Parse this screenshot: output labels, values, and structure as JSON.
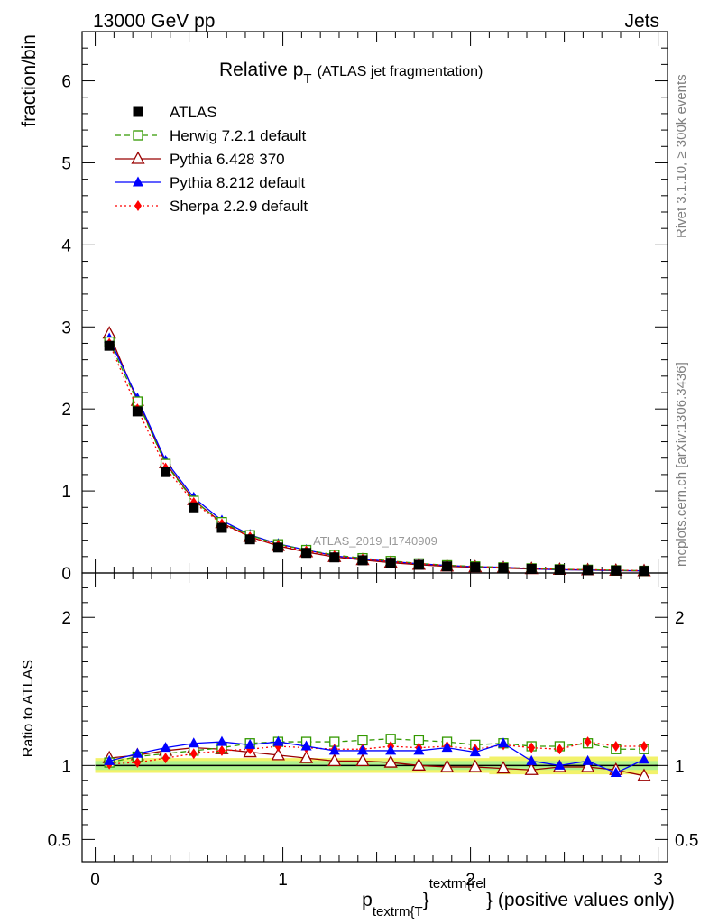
{
  "header": {
    "energy": "13000 GeV pp",
    "process": "Jets",
    "title_main": "Relative p",
    "title_sub": "T",
    "title_rest": "(ATLAS jet fragmentation)",
    "analysis_id": "ATLAS_2019_I1740909",
    "rivet_label": "Rivet 3.1.10, ≥ 300k events",
    "mcplots_label": "mcplots.cern.ch [arXiv:1306.3436]"
  },
  "axes": {
    "ylabel_top": "fraction/bin",
    "ylabel_bottom": "Ratio to ATLAS",
    "xlabel_main": "p",
    "xlabel_sub": "textrm{T",
    "xlabel_sup": "textrm{rel",
    "xlabel_rest": "} (positive values only)",
    "xlabel_close": "}"
  },
  "colors": {
    "atlas": "#000000",
    "herwig": "#339900",
    "pythia6": "#990000",
    "pythia8": "#0000ff",
    "sherpa": "#ff0000",
    "band_outer": "#f2f26a",
    "band_inner": "#aef28d"
  },
  "chart_data": [
    {
      "type": "line",
      "title": "Relative pT (ATLAS jet fragmentation)",
      "xlabel": "p_T^rel (positive values only)",
      "ylabel": "fraction/bin",
      "xlim": [
        -0.07,
        3.05
      ],
      "ylim": [
        0,
        6.6
      ],
      "xticks": [
        0,
        1,
        2,
        3
      ],
      "yticks": [
        0,
        1,
        2,
        3,
        4,
        5,
        6
      ],
      "legend_position": "top-left",
      "x": [
        0.075,
        0.225,
        0.375,
        0.525,
        0.675,
        0.825,
        0.975,
        1.125,
        1.275,
        1.425,
        1.575,
        1.725,
        1.875,
        2.025,
        2.175,
        2.325,
        2.475,
        2.625,
        2.775,
        2.925
      ],
      "series": [
        {
          "name": "ATLAS",
          "key": "atlas",
          "marker": "filled-square",
          "line": "none",
          "values": [
            2.77,
            1.97,
            1.23,
            0.8,
            0.55,
            0.41,
            0.31,
            0.245,
            0.19,
            0.155,
            0.125,
            0.1,
            0.08,
            0.07,
            0.06,
            0.05,
            0.04,
            0.035,
            0.03,
            0.025
          ]
        },
        {
          "name": "Herwig 7.2.1 default",
          "key": "herwig",
          "marker": "open-square",
          "line": "dashed",
          "values": [
            2.82,
            2.09,
            1.33,
            0.88,
            0.62,
            0.46,
            0.35,
            0.28,
            0.22,
            0.18,
            0.146,
            0.117,
            0.094,
            0.08,
            0.068,
            0.056,
            0.045,
            0.04,
            0.033,
            0.027
          ]
        },
        {
          "name": "Pythia 6.428 370",
          "key": "pythia6",
          "marker": "open-triangle",
          "line": "solid",
          "values": [
            2.92,
            2.1,
            1.34,
            0.89,
            0.61,
            0.44,
            0.33,
            0.255,
            0.195,
            0.158,
            0.126,
            0.1,
            0.08,
            0.07,
            0.06,
            0.049,
            0.04,
            0.035,
            0.029,
            0.023
          ]
        },
        {
          "name": "Pythia 8.212 default",
          "key": "pythia8",
          "marker": "filled-triangle",
          "line": "solid",
          "values": [
            2.86,
            2.13,
            1.37,
            0.92,
            0.64,
            0.465,
            0.355,
            0.28,
            0.21,
            0.17,
            0.14,
            0.112,
            0.092,
            0.076,
            0.07,
            0.052,
            0.04,
            0.036,
            0.029,
            0.026
          ]
        },
        {
          "name": "Sherpa 2.2.9 default",
          "key": "sherpa",
          "marker": "filled-diamond",
          "line": "dotted",
          "values": [
            2.8,
            2.0,
            1.28,
            0.86,
            0.6,
            0.44,
            0.34,
            0.27,
            0.21,
            0.17,
            0.14,
            0.113,
            0.092,
            0.077,
            0.068,
            0.056,
            0.044,
            0.04,
            0.034,
            0.028
          ]
        }
      ]
    },
    {
      "type": "line",
      "xlabel": "p_T^rel (positive values only)",
      "ylabel": "Ratio to ATLAS",
      "xlim": [
        -0.07,
        3.05
      ],
      "ylim": [
        0.35,
        2.3
      ],
      "xticks": [
        0,
        1,
        2,
        3
      ],
      "yticks": [
        0.5,
        1,
        2
      ],
      "reference": 1.0,
      "x": [
        0.075,
        0.225,
        0.375,
        0.525,
        0.675,
        0.825,
        0.975,
        1.125,
        1.275,
        1.425,
        1.575,
        1.725,
        1.875,
        2.025,
        2.175,
        2.325,
        2.475,
        2.625,
        2.775,
        2.925
      ],
      "band_inner": [
        0.03,
        0.03,
        0.03,
        0.03,
        0.03,
        0.03,
        0.03,
        0.03,
        0.03,
        0.03,
        0.03,
        0.03,
        0.03,
        0.03,
        0.03,
        0.03,
        0.03,
        0.03,
        0.03,
        0.03
      ],
      "band_outer": [
        0.05,
        0.05,
        0.05,
        0.05,
        0.05,
        0.05,
        0.05,
        0.05,
        0.05,
        0.05,
        0.05,
        0.05,
        0.05,
        0.05,
        0.06,
        0.06,
        0.06,
        0.06,
        0.06,
        0.06
      ],
      "series": [
        {
          "name": "Herwig 7.2.1 default",
          "key": "herwig",
          "marker": "open-square",
          "line": "dashed",
          "values": [
            1.02,
            1.06,
            1.08,
            1.1,
            1.12,
            1.15,
            1.16,
            1.16,
            1.16,
            1.17,
            1.18,
            1.17,
            1.16,
            1.14,
            1.15,
            1.13,
            1.13,
            1.15,
            1.11,
            1.11
          ]
        },
        {
          "name": "Pythia 6.428 370",
          "key": "pythia6",
          "marker": "open-triangle",
          "line": "solid",
          "values": [
            1.05,
            1.07,
            1.1,
            1.12,
            1.11,
            1.09,
            1.07,
            1.05,
            1.03,
            1.03,
            1.02,
            1.0,
            0.99,
            0.99,
            0.98,
            0.97,
            0.99,
            0.99,
            0.97,
            0.93
          ]
        },
        {
          "name": "Pythia 8.212 default",
          "key": "pythia8",
          "marker": "filled-triangle",
          "line": "solid",
          "values": [
            1.03,
            1.08,
            1.12,
            1.15,
            1.16,
            1.14,
            1.16,
            1.13,
            1.1,
            1.1,
            1.1,
            1.1,
            1.12,
            1.09,
            1.15,
            1.03,
            1.0,
            1.03,
            0.95,
            1.04
          ]
        },
        {
          "name": "Sherpa 2.2.9 default",
          "key": "sherpa",
          "marker": "filled-diamond",
          "line": "dotted",
          "values": [
            1.01,
            1.02,
            1.05,
            1.08,
            1.1,
            1.11,
            1.13,
            1.12,
            1.11,
            1.11,
            1.13,
            1.12,
            1.13,
            1.11,
            1.14,
            1.12,
            1.11,
            1.16,
            1.13,
            1.13
          ]
        }
      ]
    }
  ]
}
